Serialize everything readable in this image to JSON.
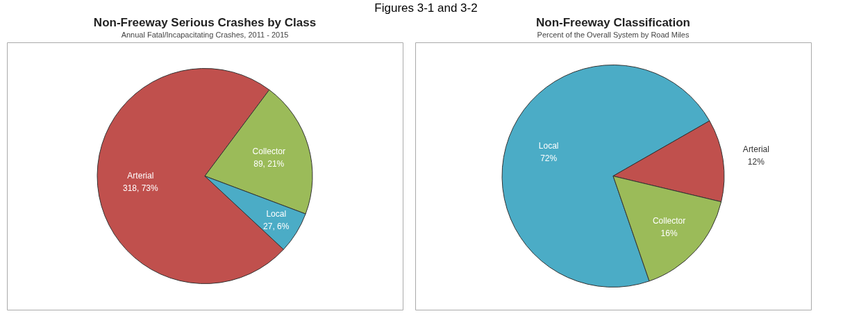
{
  "chart_data": [
    {
      "type": "pie",
      "title": "Non-Freeway Serious Crashes by Class",
      "subtitle": "Annual Fatal/Incapacitating Crashes, 2011 - 2015",
      "annotations": [
        "Figures 3-1 and 3-2"
      ],
      "categories": [
        "Arterial",
        "Collector",
        "Local"
      ],
      "values": [
        318,
        89,
        27
      ],
      "colors": [
        "#c0504d",
        "#9bbb59",
        "#4bacc6"
      ],
      "value_labels": [
        "318, 73%",
        "89, 21%",
        "27, 6%"
      ]
    },
    {
      "type": "pie",
      "title": "Non-Freeway Classification",
      "subtitle": "Percent of the Overall System by Road Miles",
      "categories": [
        "Local",
        "Arterial",
        "Collector"
      ],
      "values": [
        72,
        12,
        16
      ],
      "colors": [
        "#4bacc6",
        "#c0504d",
        "#9bbb59"
      ],
      "value_labels": [
        "72%",
        "12%",
        "16%"
      ]
    }
  ]
}
